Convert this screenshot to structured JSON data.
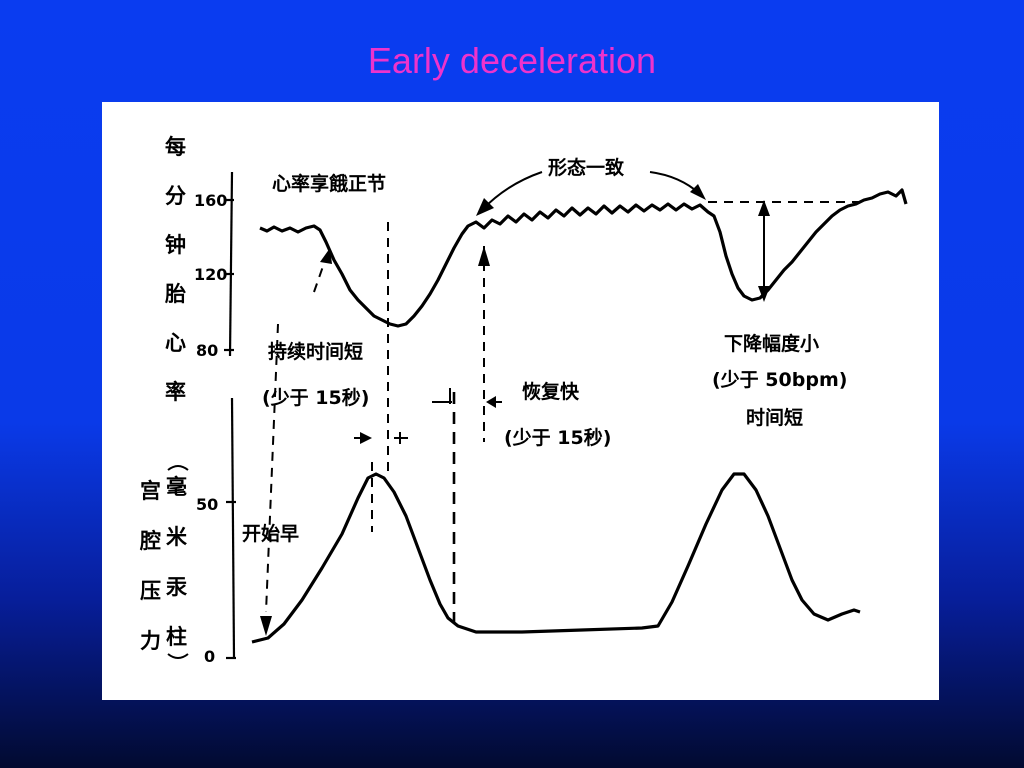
{
  "slide": {
    "title": "Early deceleration"
  },
  "diagram": {
    "upper_axis": {
      "label_chars": [
        "每",
        "分",
        "钟",
        "胎",
        "心",
        "率"
      ],
      "ticks": [
        "160",
        "120",
        "80"
      ]
    },
    "lower_axis": {
      "label_col1": [
        "宫",
        "腔",
        "压",
        "力"
      ],
      "label_col2": [
        "毫",
        "米",
        "汞",
        "柱"
      ],
      "ticks": [
        "50",
        "0"
      ]
    },
    "annotations": {
      "heart_rate_reflex": "心率享餓正节",
      "shape_consistent": "形态一致",
      "duration_short": "持续时间短",
      "less_than_15s_a": "(少于 15秒)",
      "recovery_fast": "恢复快",
      "less_than_15s_b": "(少于 15秒)",
      "drop_small": "下降幅度小",
      "less_than_50bpm": "(少于 50bpm)",
      "time_short": "时间短",
      "start_early": "开始早"
    }
  }
}
